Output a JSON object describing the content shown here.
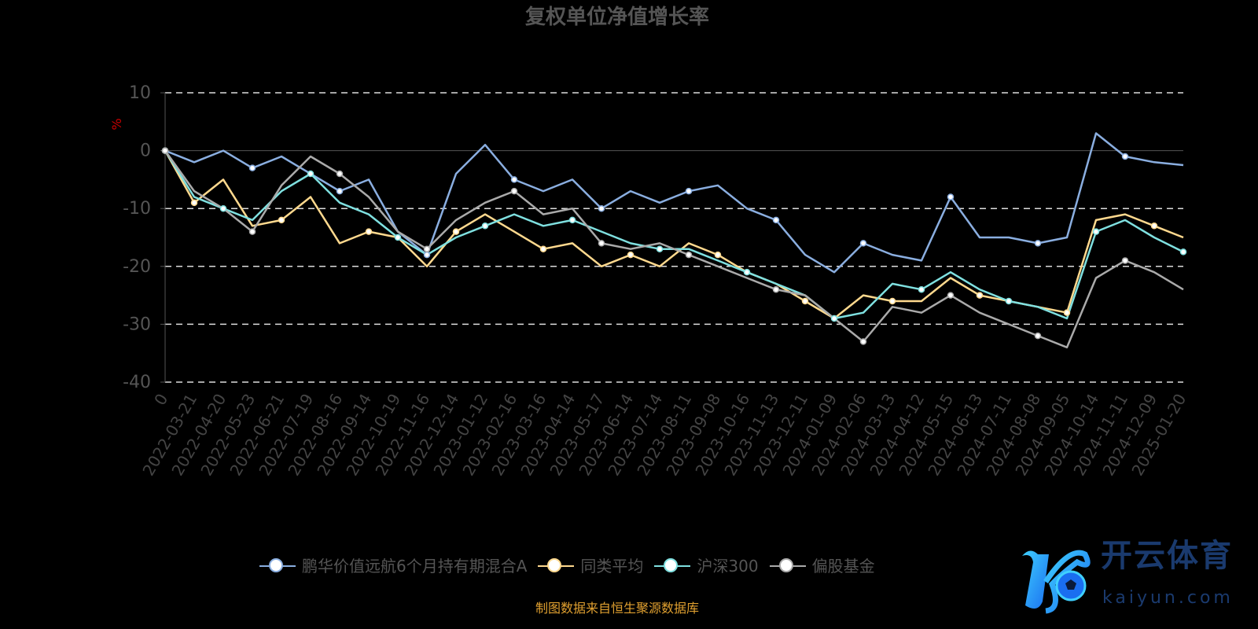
{
  "chart_data": {
    "type": "line",
    "title": "复权单位净值增长率",
    "ylabel": "%",
    "xlabel": "",
    "ylim": [
      -40,
      10
    ],
    "yticks": [
      10,
      0,
      -10,
      -20,
      -30,
      -40
    ],
    "grid": true,
    "legend_position": "bottom",
    "x": [
      "0",
      "2022-03-21",
      "2022-04-20",
      "2022-05-23",
      "2022-06-21",
      "2022-07-19",
      "2022-08-16",
      "2022-09-14",
      "2022-10-19",
      "2022-11-16",
      "2022-12-14",
      "2023-01-12",
      "2023-02-16",
      "2023-03-16",
      "2023-04-14",
      "2023-05-17",
      "2023-06-14",
      "2023-07-14",
      "2023-08-11",
      "2023-09-08",
      "2023-10-16",
      "2023-11-13",
      "2023-12-11",
      "2024-01-09",
      "2024-02-06",
      "2024-03-13",
      "2024-04-12",
      "2024-05-15",
      "2024-06-13",
      "2024-07-11",
      "2024-08-08",
      "2024-09-05",
      "2024-10-14",
      "2024-11-11",
      "2024-12-09",
      "2025-01-20"
    ],
    "series": [
      {
        "name": "鹏华价值远航6个月持有期混合A",
        "color": "#8aaee0",
        "values": [
          0,
          -2,
          0,
          -3,
          -1,
          -4,
          -7,
          -5,
          -14,
          -18,
          -4,
          1,
          -5,
          -7,
          -5,
          -10,
          -7,
          -9,
          -7,
          -6,
          -10,
          -12,
          -18,
          -21,
          -16,
          -18,
          -19,
          -8,
          -15,
          -15,
          -16,
          -15,
          3,
          -1,
          -2,
          -2.5
        ]
      },
      {
        "name": "同类平均",
        "color": "#ffd98e",
        "values": [
          0,
          -9,
          -5,
          -13,
          -12,
          -8,
          -16,
          -14,
          -15,
          -20,
          -14,
          -11,
          -14,
          -17,
          -16,
          -20,
          -18,
          -20,
          -16,
          -18,
          -21,
          -23,
          -26,
          -29,
          -25,
          -26,
          -26,
          -22,
          -25,
          -26,
          -27,
          -28,
          -12,
          -11,
          -13,
          -15
        ]
      },
      {
        "name": "沪深300",
        "color": "#7fe0e0",
        "values": [
          0,
          -8,
          -10,
          -12,
          -7,
          -4,
          -9,
          -11,
          -15,
          -18,
          -15,
          -13,
          -11,
          -13,
          -12,
          -14,
          -16,
          -17,
          -17,
          -19,
          -21,
          -23,
          -25,
          -29,
          -28,
          -23,
          -24,
          -21,
          -24,
          -26,
          -27,
          -29,
          -14,
          -12,
          -15,
          -17.5
        ]
      },
      {
        "name": "偏股基金",
        "color": "#aaaaaa",
        "values": [
          0,
          -7,
          -10,
          -14,
          -6,
          -1,
          -4,
          -8,
          -14,
          -17,
          -12,
          -9,
          -7,
          -11,
          -10,
          -16,
          -17,
          -16,
          -18,
          -20,
          -22,
          -24,
          -25,
          -29,
          -33,
          -27,
          -28,
          -25,
          -28,
          -30,
          -32,
          -34,
          -22,
          -19,
          -21,
          -24
        ]
      }
    ]
  },
  "source_note": "制图数据来自恒生聚源数据库",
  "watermark": {
    "cn": "开云体育",
    "en": "kaiyun.com"
  }
}
